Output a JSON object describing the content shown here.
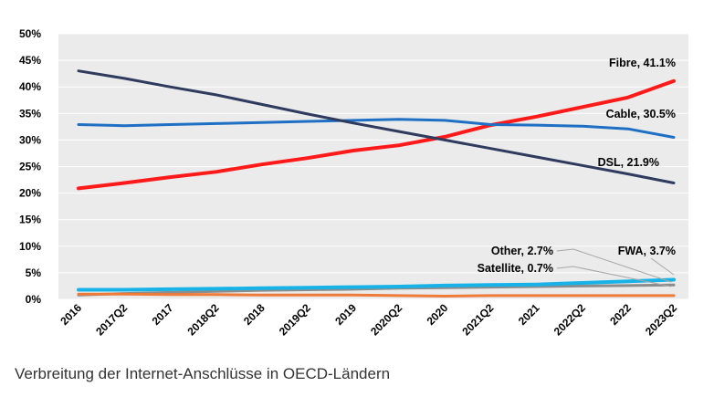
{
  "caption": "Verbreitung der Internet-Anschlüsse in OECD-Ländern",
  "chart_data": {
    "type": "line",
    "title": "",
    "xlabel": "",
    "ylabel": "",
    "ylim": [
      0,
      50
    ],
    "yticks": [
      "0%",
      "5%",
      "10%",
      "15%",
      "20%",
      "25%",
      "30%",
      "35%",
      "40%",
      "45%",
      "50%"
    ],
    "grid": true,
    "categories": [
      "2016",
      "2017Q2",
      "2017",
      "2018Q2",
      "2018",
      "2019Q2",
      "2019",
      "2020Q2",
      "2020",
      "2021Q2",
      "2021",
      "2022Q2",
      "2022",
      "2023Q2"
    ],
    "series": [
      {
        "name": "Fibre",
        "label": "Fibre, 41.1%",
        "color": "#ff1a1a",
        "width": 4,
        "values": [
          20.9,
          21.9,
          23.0,
          24.0,
          25.4,
          26.6,
          28.0,
          29.0,
          30.6,
          32.8,
          34.4,
          36.2,
          38.0,
          41.1
        ]
      },
      {
        "name": "Cable",
        "label": "Cable, 30.5%",
        "color": "#1f6fc5",
        "width": 3,
        "values": [
          32.9,
          32.7,
          32.9,
          33.1,
          33.3,
          33.5,
          33.7,
          33.9,
          33.7,
          32.9,
          32.8,
          32.6,
          32.1,
          30.5
        ]
      },
      {
        "name": "DSL",
        "label": "DSL, 21.9%",
        "color": "#2e3a5e",
        "width": 3,
        "values": [
          43.0,
          41.6,
          40.0,
          38.5,
          36.7,
          34.9,
          33.2,
          31.6,
          30.0,
          28.4,
          26.8,
          25.2,
          23.6,
          21.9
        ]
      },
      {
        "name": "Other",
        "label": "Other, 2.7%",
        "color": "#8c8c8c",
        "width": 3,
        "values": [
          0.8,
          1.1,
          1.3,
          1.5,
          1.7,
          1.8,
          1.9,
          2.1,
          2.2,
          2.3,
          2.4,
          2.5,
          2.6,
          2.7
        ]
      },
      {
        "name": "Satellite",
        "label": "Satellite, 0.7%",
        "color": "#ef7b3a",
        "width": 3,
        "values": [
          1.0,
          1.0,
          0.9,
          0.9,
          0.8,
          0.8,
          0.8,
          0.7,
          0.6,
          0.7,
          0.7,
          0.7,
          0.7,
          0.7
        ]
      },
      {
        "name": "FWA",
        "label": "FWA, 3.7%",
        "color": "#17b3e8",
        "width": 4,
        "values": [
          1.8,
          1.8,
          1.9,
          2.0,
          2.1,
          2.2,
          2.3,
          2.4,
          2.6,
          2.7,
          2.8,
          3.1,
          3.4,
          3.7
        ]
      }
    ]
  }
}
